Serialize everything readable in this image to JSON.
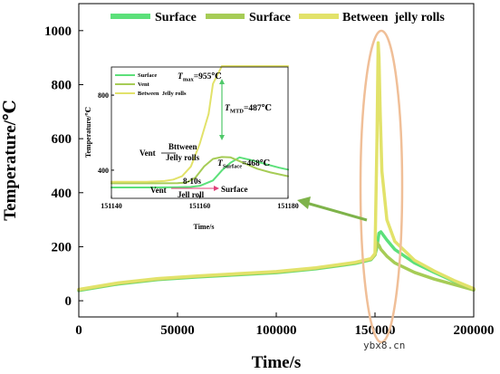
{
  "chart_data": [
    {
      "type": "line",
      "xlabel": "Time/s",
      "ylabel": "Temperature/℃",
      "xlim": [
        0,
        200000
      ],
      "ylim": [
        -60,
        1100
      ],
      "x_ticks": [
        "0",
        "50000",
        "100000",
        "150000",
        "200000"
      ],
      "y_ticks": [
        "0",
        "200",
        "400",
        "600",
        "800",
        "1000"
      ],
      "legend_position": "top",
      "series": [
        {
          "name": "Surface",
          "color": "#5ce07a",
          "x": [
            0,
            20000,
            40000,
            60000,
            80000,
            100000,
            120000,
            140000,
            148000,
            150000,
            151000,
            152000,
            153000,
            156000,
            160000,
            170000,
            180000,
            190000,
            200000
          ],
          "y": [
            38,
            62,
            78,
            88,
            96,
            104,
            118,
            138,
            152,
            170,
            200,
            250,
            255,
            225,
            190,
            140,
            105,
            72,
            42
          ]
        },
        {
          "name": "Surface",
          "color": "#a6cc56",
          "x": [
            0,
            20000,
            40000,
            60000,
            80000,
            100000,
            120000,
            140000,
            148000,
            150000,
            151000,
            152000,
            153000,
            156000,
            160000,
            170000,
            180000,
            190000,
            200000
          ],
          "y": [
            40,
            64,
            80,
            90,
            98,
            106,
            120,
            140,
            154,
            170,
            215,
            205,
            190,
            165,
            140,
            105,
            80,
            60,
            40
          ]
        },
        {
          "name": "Between  jelly rolls",
          "color": "#e2e26a",
          "x": [
            0,
            20000,
            40000,
            60000,
            80000,
            100000,
            120000,
            140000,
            148000,
            150000,
            151000,
            151600,
            152000,
            152600,
            153500,
            156000,
            160000,
            170000,
            180000,
            190000,
            200000
          ],
          "y": [
            42,
            66,
            82,
            92,
            100,
            108,
            122,
            142,
            156,
            175,
            600,
            955,
            900,
            700,
            480,
            300,
            220,
            150,
            110,
            75,
            45
          ]
        }
      ],
      "annotations": {
        "highlight_ellipse_center": [
          151500,
          470
        ],
        "watermark": "ybx8.cn"
      }
    },
    {
      "type": "line",
      "role": "inset",
      "xlabel": "Time/s",
      "ylabel": "Temperature/℃",
      "xlim": [
        151140,
        151180
      ],
      "ylim": [
        250,
        950
      ],
      "x_ticks": [
        "151140",
        "151160",
        "151180"
      ],
      "y_ticks": [
        "400",
        "800"
      ],
      "legend_position": "top-left",
      "series": [
        {
          "name": "Surface",
          "color": "#5ce07a",
          "x": [
            151140,
            151150,
            151155,
            151158,
            151160,
            151163,
            151165,
            151167,
            151169,
            151172,
            151175,
            151178,
            151180
          ],
          "y": [
            308,
            308,
            309,
            311,
            316,
            345,
            398,
            440,
            468,
            452,
            432,
            413,
            403
          ]
        },
        {
          "name": "Vent",
          "color": "#a6cc56",
          "x": [
            151140,
            151150,
            151155,
            151157,
            151159,
            151161,
            151163,
            151165,
            151167,
            151170,
            151173,
            151176,
            151180
          ],
          "y": [
            330,
            330,
            331,
            334,
            360,
            420,
            460,
            470,
            468,
            438,
            408,
            388,
            368
          ]
        },
        {
          "name": "Between  Jelly rolls",
          "color": "#e2e26a",
          "x": [
            151140,
            151148,
            151152,
            151154,
            151156,
            151158,
            151160,
            151162,
            151163,
            151165,
            151170,
            151175,
            151180
          ],
          "y": [
            338,
            338,
            342,
            350,
            368,
            420,
            540,
            700,
            860,
            955,
            955,
            955,
            955
          ]
        }
      ],
      "annotations": {
        "t_max_label": "=955℃",
        "t_max_sub": "max",
        "t_mtd_label": "=487℃",
        "t_mtd_sub": "MTD",
        "t_surface_label": "=468℃",
        "t_surface_sub": "Surface",
        "t_symbol": "T",
        "vent_label": "Vent",
        "between_label_1": "Bttween",
        "between_label_2": "Jelly rolls",
        "timing_vent": "Vent",
        "timing_gap": "8-10s",
        "timing_surface": "Surface",
        "timing_jellyroll": "Jell roll"
      }
    }
  ]
}
